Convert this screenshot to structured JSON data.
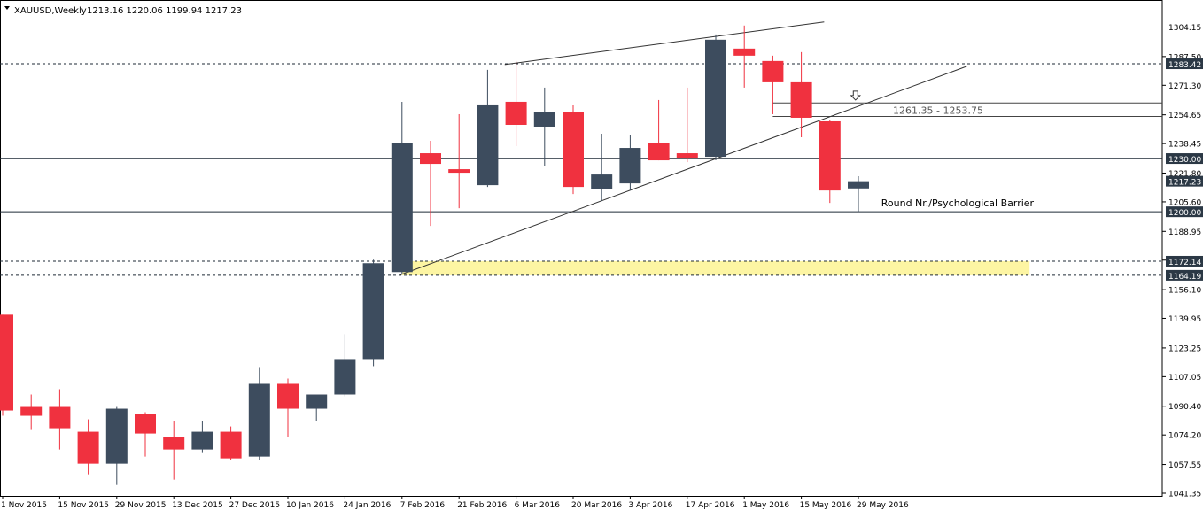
{
  "header": {
    "symbol_label": "XAUUSD,Weekly",
    "ohlc_label": "1213.16 1220.06 1199.94 1217.23"
  },
  "chart_data": {
    "type": "candlestick",
    "symbol": "XAUUSD",
    "timeframe": "Weekly",
    "ylim": [
      1041.35,
      1304.15
    ],
    "y_ticks": [
      "1304.15",
      "1287.50",
      "1271.30",
      "1254.65",
      "1238.45",
      "1221.80",
      "1205.60",
      "1188.95",
      "1172.75",
      "1156.10",
      "1139.95",
      "1123.25",
      "1107.05",
      "1090.40",
      "1074.20",
      "1057.55",
      "1041.35"
    ],
    "x_tick_labels": [
      "1 Nov 2015",
      "15 Nov 2015",
      "29 Nov 2015",
      "13 Dec 2015",
      "27 Dec 2015",
      "10 Jan 2016",
      "24 Jan 2016",
      "7 Feb 2016",
      "21 Feb 2016",
      "6 Mar 2016",
      "20 Mar 2016",
      "3 Apr 2016",
      "17 Apr 2016",
      "1 May 2016",
      "15 May 2016",
      "29 May 2016"
    ],
    "colors": {
      "bull": "#3d4c5e",
      "bear": "#f0313f",
      "zone": "#fdf5a3",
      "line": "#1e2a36"
    },
    "candles": [
      {
        "o": 1142.0,
        "h": 1142.0,
        "l": 1085.0,
        "c": 1088.0
      },
      {
        "o": 1090.0,
        "h": 1097.0,
        "l": 1077.0,
        "c": 1085.0
      },
      {
        "o": 1090.0,
        "h": 1100.0,
        "l": 1066.0,
        "c": 1078.0
      },
      {
        "o": 1076.0,
        "h": 1083.0,
        "l": 1052.0,
        "c": 1058.0
      },
      {
        "o": 1058.0,
        "h": 1090.0,
        "l": 1046.0,
        "c": 1089.0
      },
      {
        "o": 1086.0,
        "h": 1087.0,
        "l": 1062.0,
        "c": 1075.0
      },
      {
        "o": 1073.0,
        "h": 1082.0,
        "l": 1049.0,
        "c": 1066.0
      },
      {
        "o": 1066.0,
        "h": 1082.0,
        "l": 1064.0,
        "c": 1076.0
      },
      {
        "o": 1076.0,
        "h": 1079.0,
        "l": 1060.0,
        "c": 1061.0
      },
      {
        "o": 1062.0,
        "h": 1112.0,
        "l": 1060.0,
        "c": 1103.0
      },
      {
        "o": 1103.0,
        "h": 1106.0,
        "l": 1073.0,
        "c": 1089.0
      },
      {
        "o": 1089.0,
        "h": 1096.0,
        "l": 1082.0,
        "c": 1097.0
      },
      {
        "o": 1097.0,
        "h": 1131.0,
        "l": 1096.0,
        "c": 1117.0
      },
      {
        "o": 1117.0,
        "h": 1173.0,
        "l": 1113.0,
        "c": 1171.0
      },
      {
        "o": 1166.0,
        "h": 1262.0,
        "l": 1165.0,
        "c": 1239.0
      },
      {
        "o": 1233.0,
        "h": 1240.0,
        "l": 1192.0,
        "c": 1227.0
      },
      {
        "o": 1224.0,
        "h": 1255.0,
        "l": 1202.0,
        "c": 1222.0
      },
      {
        "o": 1215.0,
        "h": 1280.0,
        "l": 1214.0,
        "c": 1260.0
      },
      {
        "o": 1262.0,
        "h": 1285.0,
        "l": 1237.0,
        "c": 1249.0
      },
      {
        "o": 1248.0,
        "h": 1270.0,
        "l": 1226.0,
        "c": 1256.0
      },
      {
        "o": 1256.0,
        "h": 1260.0,
        "l": 1210.0,
        "c": 1214.0
      },
      {
        "o": 1213.0,
        "h": 1244.0,
        "l": 1206.0,
        "c": 1221.0
      },
      {
        "o": 1216.0,
        "h": 1243.0,
        "l": 1212.0,
        "c": 1236.0
      },
      {
        "o": 1239.0,
        "h": 1263.0,
        "l": 1229.0,
        "c": 1229.0
      },
      {
        "o": 1233.0,
        "h": 1270.0,
        "l": 1228.0,
        "c": 1230.0
      },
      {
        "o": 1231.0,
        "h": 1300.0,
        "l": 1229.0,
        "c": 1297.0
      },
      {
        "o": 1292.0,
        "h": 1305.0,
        "l": 1270.0,
        "c": 1288.0
      },
      {
        "o": 1285.0,
        "h": 1288.0,
        "l": 1255.0,
        "c": 1273.0
      },
      {
        "o": 1273.0,
        "h": 1290.0,
        "l": 1242.0,
        "c": 1253.0
      },
      {
        "o": 1251.0,
        "h": 1252.0,
        "l": 1205.0,
        "c": 1212.0
      },
      {
        "o": 1213.16,
        "h": 1220.06,
        "l": 1199.94,
        "c": 1217.23
      }
    ],
    "horizontal_levels": [
      {
        "value": 1283.42,
        "label": "1283.42",
        "style": "dashed"
      },
      {
        "value": 1230.0,
        "label": "1230.00",
        "style": "solid"
      },
      {
        "value": 1217.23,
        "label": "1217.23",
        "style": "marker"
      },
      {
        "value": 1200.0,
        "label": "1200.00",
        "style": "solid"
      },
      {
        "value": 1172.14,
        "label": "1172.14",
        "style": "dashed"
      },
      {
        "value": 1164.19,
        "label": "1164.19",
        "style": "dashed"
      }
    ],
    "zone": {
      "from": 1164.19,
      "to": 1172.14,
      "start_candle": 14,
      "end_candle": 36
    },
    "fib_box": {
      "top": 1261.35,
      "bottom": 1253.75,
      "start_candle": 27,
      "label": "1261.35 - 1253.75"
    },
    "trendlines": [
      {
        "x1": 17.6,
        "y1": 1283.0,
        "x2": 28.8,
        "y2": 1307.0
      },
      {
        "x1": 13.9,
        "y1": 1164.19,
        "x2": 33.8,
        "y2": 1282.0
      }
    ],
    "annotations": [
      {
        "text": "Round Nr./Psychological Barrier",
        "candle_x": 30.8,
        "value": 1203.0
      }
    ],
    "arrow_marker": {
      "candle_x": 29.9,
      "value": 1265.5
    }
  }
}
